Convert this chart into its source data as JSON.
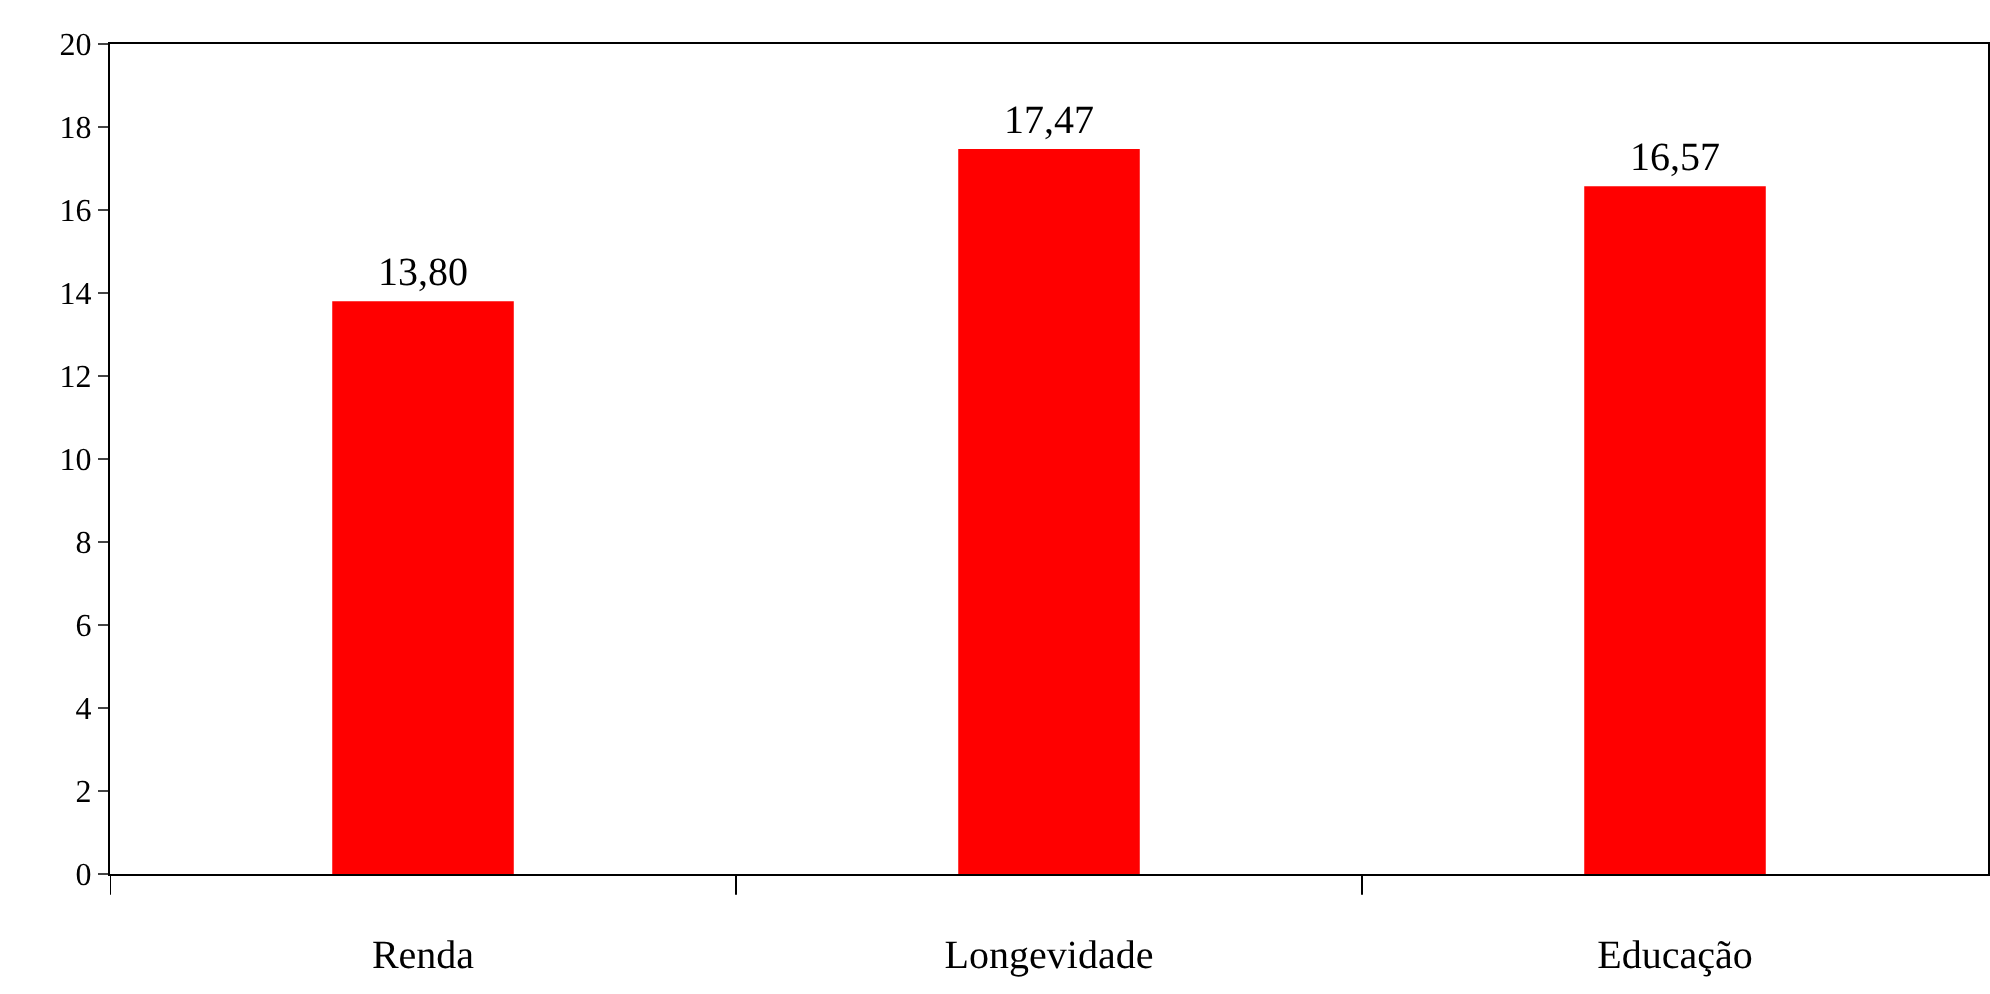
{
  "chart_data": {
    "type": "bar",
    "categories": [
      "Renda",
      "Longevidade",
      "Educação"
    ],
    "values": [
      13.8,
      17.47,
      16.57
    ],
    "value_labels": [
      "13,80",
      "17,47",
      "16,57"
    ],
    "color": "#ff0000",
    "ylim": [
      0,
      20
    ],
    "yticks": [
      0,
      2,
      4,
      6,
      8,
      10,
      12,
      14,
      16,
      18,
      20
    ],
    "grid": false
  }
}
